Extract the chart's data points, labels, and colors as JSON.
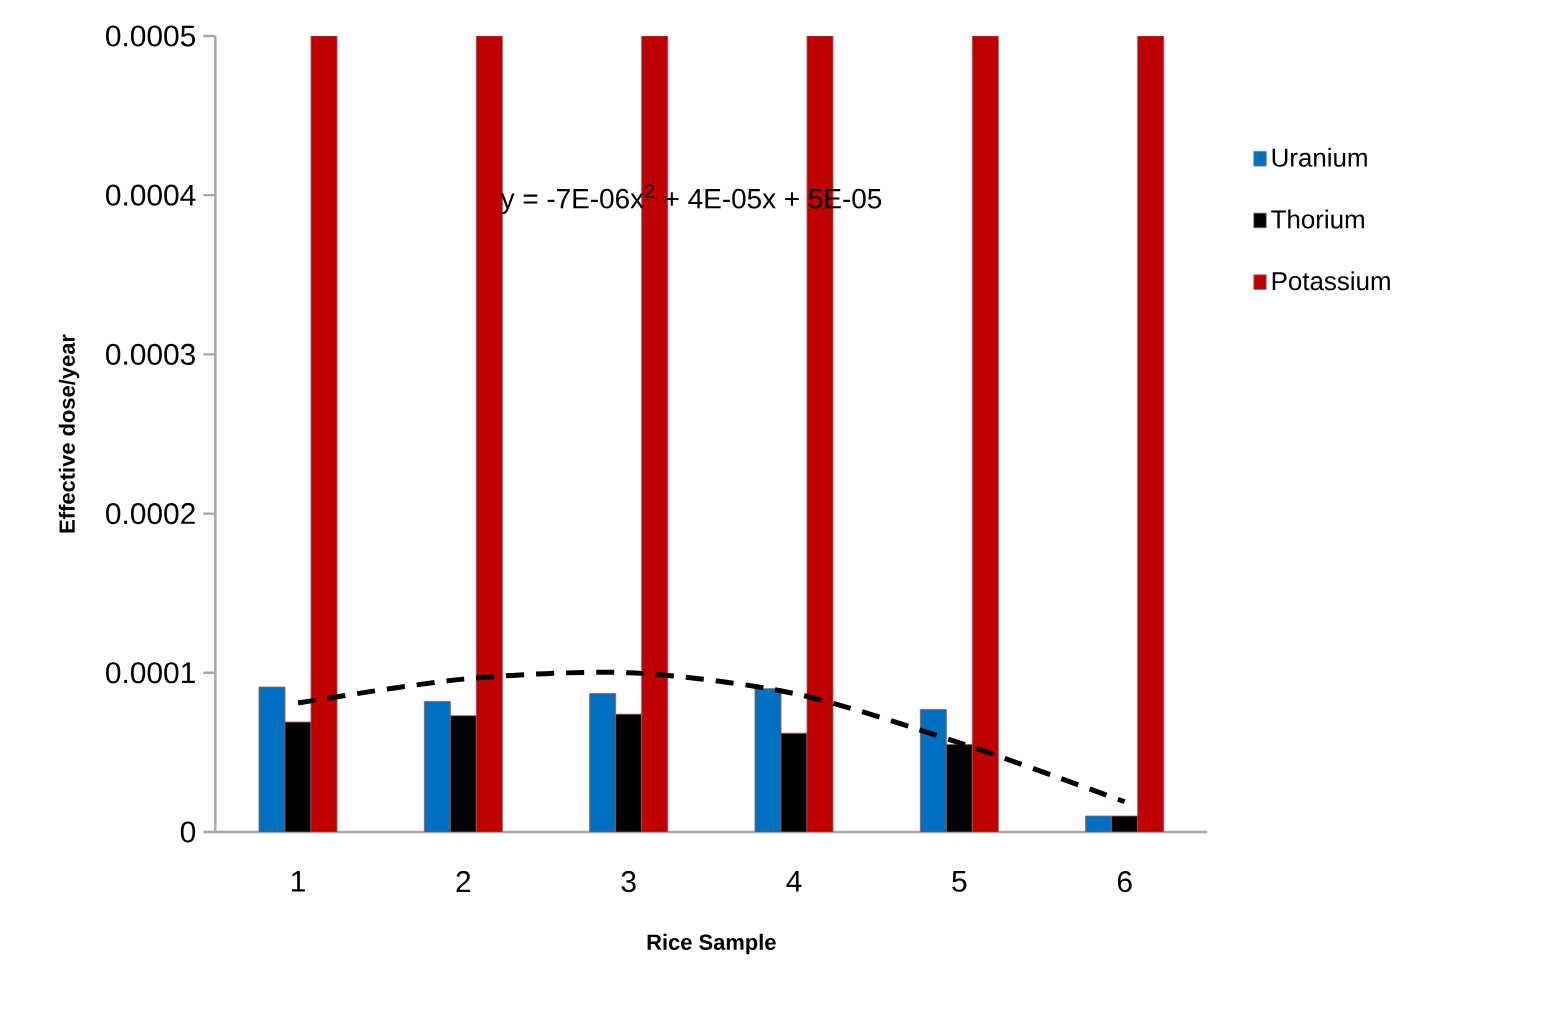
{
  "chart_data": {
    "type": "bar",
    "xlabel": "Rice Sample",
    "ylabel": "Effective dose/year",
    "categories": [
      "1",
      "2",
      "3",
      "4",
      "5",
      "6"
    ],
    "series": [
      {
        "name": "Uranium",
        "color": "#0070c0",
        "values": [
          9.1e-05,
          8.2e-05,
          8.7e-05,
          9e-05,
          7.7e-05,
          1e-05
        ]
      },
      {
        "name": "Thorium",
        "color": "#000000",
        "values": [
          6.9e-05,
          7.3e-05,
          7.4e-05,
          6.2e-05,
          5.5e-05,
          1e-05
        ]
      },
      {
        "name": "Potassium",
        "color": "#c00000",
        "values": [
          0.0005,
          0.0005,
          0.0005,
          0.0005,
          0.0005,
          0.0005
        ]
      },
      {
        "type": "line",
        "color": "#000000",
        "line_style": "dashed",
        "x": [
          "1",
          "2",
          "3",
          "4",
          "5",
          "6"
        ],
        "values": [
          8.1e-05,
          9.6e-05,
          0.0001,
          8.7e-05,
          5.6e-05,
          1.9e-05
        ]
      }
    ],
    "ylim": [
      0,
      0.0005
    ],
    "yticks": [
      {
        "value": 0,
        "label": "0"
      },
      {
        "value": 0.0001,
        "label": "0.0001"
      },
      {
        "value": 0.0002,
        "label": "0.0002"
      },
      {
        "value": 0.0003,
        "label": "0.0003"
      },
      {
        "value": 0.0004,
        "label": "0.0004"
      },
      {
        "value": 0.0005,
        "label": "0.0005"
      }
    ],
    "annotations": [
      "y = -7E-06x$^{2}$ + 4E-05x + 5E-05"
    ],
    "legend": "right",
    "grid": false
  }
}
